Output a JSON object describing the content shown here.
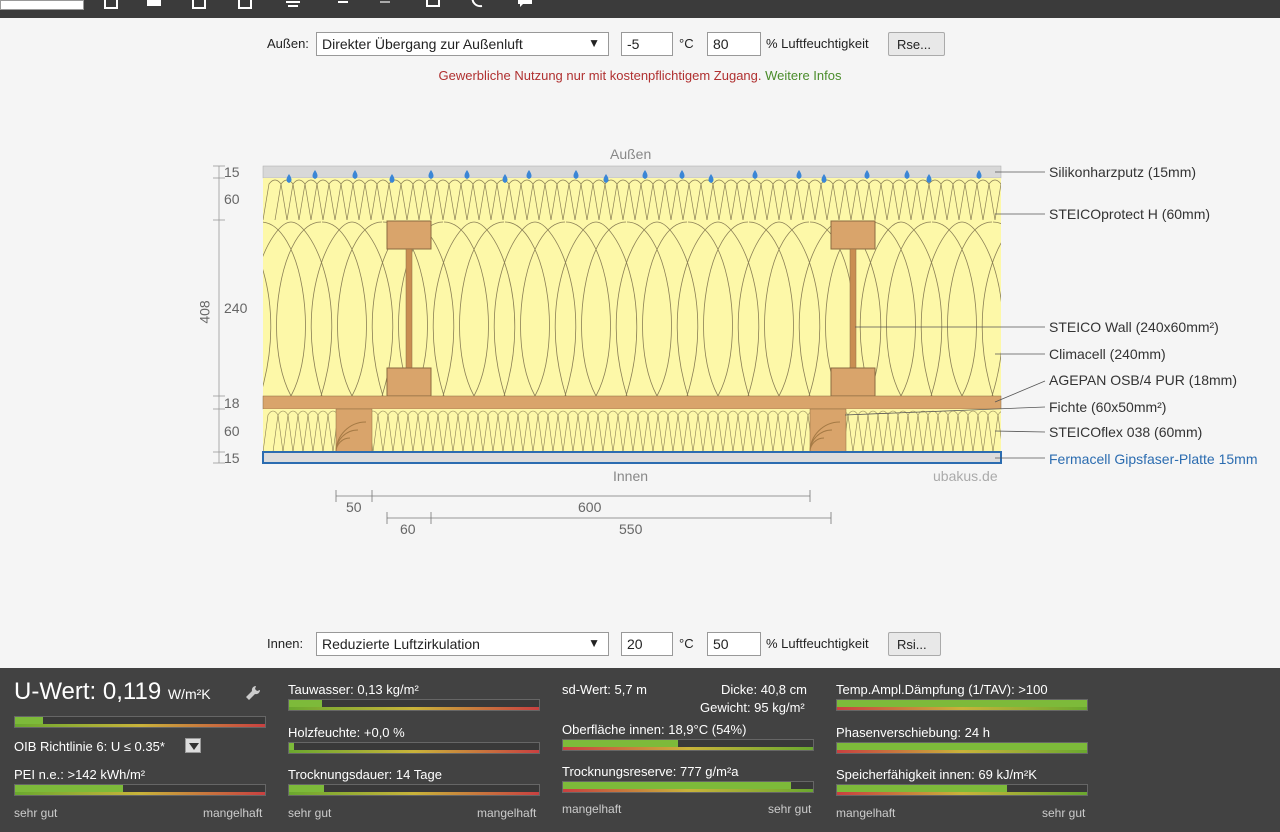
{
  "outside": {
    "label": "Außen:",
    "condition": "Direkter Übergang zur Außenluft",
    "temp": "-5",
    "temp_unit": "°C",
    "humidity": "80",
    "humidity_unit": "% Luftfeuchtigkeit",
    "r_button": "Rse..."
  },
  "notice": {
    "text": "Gewerbliche Nutzung nur mit kostenpflichtigem Zugang.",
    "link": "Weitere Infos"
  },
  "diagram": {
    "outside_label": "Außen",
    "inside_label": "Innen",
    "watermark": "ubakus.de",
    "total_thickness": "408",
    "layer_thicknesses": [
      "15",
      "60",
      "240",
      "18",
      "60",
      "15"
    ],
    "layers": [
      "Silikonharzputz (15mm)",
      "STEICOprotect H (60mm)",
      "STEICO  Wall (240x60mm²)",
      "Climacell (240mm)",
      "AGEPAN OSB/4 PUR (18mm)",
      "Fichte (60x50mm²)",
      "STEICOflex 038 (60mm)",
      "Fermacell Gipsfaser-Platte 15mm"
    ],
    "dims": [
      "50",
      "600",
      "60",
      "550"
    ],
    "colors": {
      "insulation": "#fdf8a8",
      "wood": "#d9a46b",
      "plaster": "#d8d8d8",
      "highlight": "#2b6cb0",
      "droplet": "#3a86d6"
    }
  },
  "inside": {
    "label": "Innen:",
    "condition": "Reduzierte Luftzirkulation",
    "temp": "20",
    "temp_unit": "°C",
    "humidity": "50",
    "humidity_unit": "% Luftfeuchtigkeit",
    "r_button": "Rsi..."
  },
  "results": {
    "u_label": "U-Wert:",
    "u_value": "0,119",
    "u_unit": "W/m²K",
    "u_bar": 0.11,
    "oib": "OIB Richtlinie 6: U ≤ 0.35*",
    "pei": "PEI n.e.: >142 kWh/m²",
    "pei_bar": 0.43,
    "tauwasser": "Tauwasser: 0,13 kg/m²",
    "tauwasser_bar": 0.13,
    "holzfeuchte": "Holzfeuchte: +0,0 %",
    "holzfeuchte_bar": 0.02,
    "trocknung": "Trocknungsdauer: 14 Tage",
    "trocknung_bar": 0.14,
    "sd": "sd-Wert: 5,7 m",
    "dicke": "Dicke: 40,8 cm",
    "gewicht": "Gewicht: 95 kg/m²",
    "oberflaeche": "Oberfläche innen: 18,9°C (54%)",
    "oberflaeche_bar": 0.46,
    "reserve": "Trocknungsreserve: 777 g/m²a",
    "reserve_bar": 0.91,
    "tav": "Temp.Ampl.Dämpfung (1/TAV): >100",
    "tav_bar": 1.0,
    "phase": "Phasenverschiebung: 24 h",
    "phase_bar": 1.0,
    "speicher": "Speicherfähigkeit innen: 69 kJ/m²K",
    "speicher_bar": 0.68,
    "scale_good": "sehr gut",
    "scale_bad": "mangelhaft"
  }
}
